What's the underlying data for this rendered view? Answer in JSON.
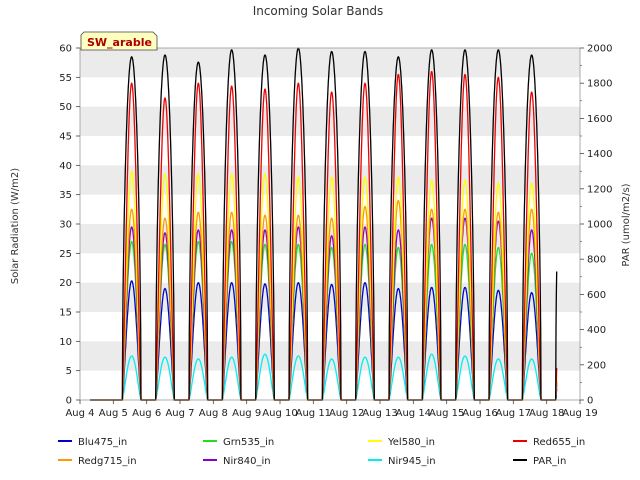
{
  "chart_data": {
    "type": "line",
    "title": "Incoming Solar Bands",
    "ylabel_left": "Solar Radiation (W/m2)",
    "ylabel_right": "PAR (umol/m2/s)",
    "annotation": "SW_arable",
    "ylim_left": [
      0,
      60
    ],
    "ylim_right": [
      0,
      2000
    ],
    "x_ticks": [
      "Aug 4",
      "Aug 5",
      "Aug 6",
      "Aug 7",
      "Aug 8",
      "Aug 9",
      "Aug 10",
      "Aug 11",
      "Aug 12",
      "Aug 13",
      "Aug 14",
      "Aug 15",
      "Aug 16",
      "Aug 17",
      "Aug 18",
      "Aug 19"
    ],
    "y_ticks_left": [
      "0",
      "5",
      "10",
      "15",
      "20",
      "25",
      "30",
      "35",
      "40",
      "45",
      "50",
      "55",
      "60"
    ],
    "y_ticks_right": [
      "0",
      "200",
      "400",
      "600",
      "800",
      "1000",
      "1200",
      "1400",
      "1600",
      "1800",
      "2000"
    ],
    "grid": "horizontal bands",
    "legend_position": "bottom",
    "days": [
      "Aug 5",
      "Aug 6",
      "Aug 7",
      "Aug 8",
      "Aug 9",
      "Aug 10",
      "Aug 11",
      "Aug 12",
      "Aug 13",
      "Aug 14",
      "Aug 15",
      "Aug 16",
      "Aug 17",
      "Aug 18"
    ],
    "series": [
      {
        "name": "Blu475_in",
        "color": "#0000cc",
        "axis": "left",
        "daily_peak": [
          20.3,
          19.0,
          20.0,
          20.0,
          19.8,
          20.0,
          19.7,
          20.0,
          19.0,
          19.2,
          19.2,
          18.7,
          18.3,
          18.0
        ]
      },
      {
        "name": "Grn535_in",
        "color": "#22dd22",
        "axis": "left",
        "daily_peak": [
          27.0,
          26.5,
          27.0,
          27.0,
          26.5,
          26.5,
          26.0,
          26.5,
          26.0,
          26.5,
          26.5,
          26.0,
          25.0,
          24.5
        ]
      },
      {
        "name": "Yel580_in",
        "color": "#ffff00",
        "axis": "left",
        "daily_peak": [
          39.0,
          38.5,
          38.5,
          38.5,
          38.5,
          38.0,
          38.0,
          38.0,
          38.0,
          37.5,
          37.5,
          37.0,
          37.0,
          37.0
        ]
      },
      {
        "name": "Red655_in",
        "color": "#ee0000",
        "axis": "left",
        "daily_peak": [
          54.0,
          51.5,
          54.0,
          53.5,
          53.0,
          54.0,
          52.5,
          54.0,
          55.5,
          56.0,
          55.5,
          55.0,
          52.5,
          51.0
        ]
      },
      {
        "name": "Redg715_in",
        "color": "#ff9900",
        "axis": "left",
        "daily_peak": [
          32.5,
          31.0,
          32.0,
          32.0,
          31.5,
          31.5,
          31.0,
          33.0,
          34.0,
          32.5,
          32.5,
          32.0,
          32.5,
          31.0
        ]
      },
      {
        "name": "Nir840_in",
        "color": "#8800cc",
        "axis": "left",
        "daily_peak": [
          29.5,
          28.5,
          29.0,
          29.0,
          29.0,
          29.5,
          28.0,
          29.5,
          29.0,
          31.0,
          31.0,
          30.5,
          29.0,
          28.0
        ]
      },
      {
        "name": "Nir945_in",
        "color": "#00eeee",
        "axis": "left",
        "daily_peak": [
          7.5,
          7.3,
          7.0,
          7.3,
          7.8,
          7.5,
          7.0,
          7.3,
          7.3,
          7.8,
          7.5,
          7.0,
          7.0,
          7.0
        ]
      },
      {
        "name": "PAR_in",
        "color": "#000000",
        "axis": "right",
        "daily_peak": [
          1950,
          1960,
          1920,
          1990,
          1960,
          2000,
          1980,
          1980,
          1950,
          1990,
          1990,
          1990,
          1960,
          1950
        ]
      }
    ]
  }
}
